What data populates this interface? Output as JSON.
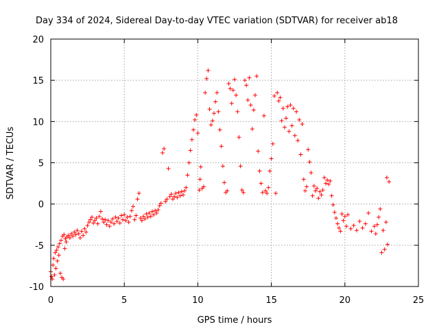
{
  "chart_data": {
    "type": "scatter",
    "title": "Day 334 of 2024, Sidereal Day-to-day VTEC variation (SDTVAR) for receiver ab18",
    "xlabel": "GPS time / hours",
    "ylabel": "SDTVAR / TECUs",
    "xlim": [
      0,
      25
    ],
    "ylim": [
      -10,
      20
    ],
    "xticks": [
      0,
      5,
      10,
      15,
      20,
      25
    ],
    "yticks": [
      -10,
      -5,
      0,
      5,
      10,
      15,
      20
    ],
    "grid": true,
    "marker": "+",
    "series": [
      {
        "name": "SDTVAR",
        "color": "#ff0000",
        "points": [
          [
            0.0,
            -8.2
          ],
          [
            0.05,
            -8.8
          ],
          [
            0.1,
            -9.1
          ],
          [
            0.15,
            -7.4
          ],
          [
            0.2,
            -6.6
          ],
          [
            0.25,
            -8.6
          ],
          [
            0.3,
            -5.9
          ],
          [
            0.35,
            -7.8
          ],
          [
            0.4,
            -5.6
          ],
          [
            0.45,
            -6.9
          ],
          [
            0.5,
            -5.2
          ],
          [
            0.55,
            -6.2
          ],
          [
            0.6,
            -4.8
          ],
          [
            0.65,
            -8.4
          ],
          [
            0.7,
            -4.4
          ],
          [
            0.75,
            -8.9
          ],
          [
            0.8,
            -3.9
          ],
          [
            0.85,
            -9.1
          ],
          [
            0.9,
            -3.7
          ],
          [
            0.95,
            -5.4
          ],
          [
            1.0,
            -4.2
          ],
          [
            1.05,
            -4.6
          ],
          [
            1.1,
            -4.0
          ],
          [
            1.2,
            -3.8
          ],
          [
            1.3,
            -4.1
          ],
          [
            1.4,
            -3.6
          ],
          [
            1.5,
            -3.9
          ],
          [
            1.6,
            -3.4
          ],
          [
            1.7,
            -3.7
          ],
          [
            1.8,
            -3.2
          ],
          [
            1.9,
            -3.6
          ],
          [
            2.0,
            -4.1
          ],
          [
            2.1,
            -3.3
          ],
          [
            2.2,
            -3.8
          ],
          [
            2.3,
            -3.0
          ],
          [
            2.4,
            -3.4
          ],
          [
            2.5,
            -2.6
          ],
          [
            2.6,
            -2.2
          ],
          [
            2.7,
            -1.9
          ],
          [
            2.8,
            -1.6
          ],
          [
            2.9,
            -2.3
          ],
          [
            3.0,
            -2.0
          ],
          [
            3.1,
            -1.7
          ],
          [
            3.2,
            -2.4
          ],
          [
            3.3,
            -1.5
          ],
          [
            3.4,
            -0.9
          ],
          [
            3.5,
            -1.8
          ],
          [
            3.6,
            -2.2
          ],
          [
            3.7,
            -1.9
          ],
          [
            3.8,
            -2.5
          ],
          [
            3.9,
            -2.0
          ],
          [
            4.0,
            -2.7
          ],
          [
            4.1,
            -2.2
          ],
          [
            4.2,
            -1.8
          ],
          [
            4.3,
            -2.4
          ],
          [
            4.4,
            -1.6
          ],
          [
            4.5,
            -2.1
          ],
          [
            4.6,
            -1.7
          ],
          [
            4.7,
            -2.3
          ],
          [
            4.8,
            -1.4
          ],
          [
            4.9,
            -1.9
          ],
          [
            5.0,
            -1.3
          ],
          [
            5.1,
            -2.0
          ],
          [
            5.2,
            -1.6
          ],
          [
            5.3,
            -2.2
          ],
          [
            5.4,
            -1.5
          ],
          [
            5.5,
            -0.8
          ],
          [
            5.6,
            -0.3
          ],
          [
            5.7,
            -1.9
          ],
          [
            5.8,
            -1.4
          ],
          [
            5.9,
            0.6
          ],
          [
            6.0,
            1.3
          ],
          [
            6.1,
            -1.7
          ],
          [
            6.2,
            -2.0
          ],
          [
            6.3,
            -1.5
          ],
          [
            6.4,
            -1.8
          ],
          [
            6.5,
            -1.2
          ],
          [
            6.6,
            -1.6
          ],
          [
            6.7,
            -1.1
          ],
          [
            6.8,
            -1.5
          ],
          [
            6.9,
            -0.9
          ],
          [
            7.0,
            -1.3
          ],
          [
            7.1,
            -0.8
          ],
          [
            7.2,
            -1.1
          ],
          [
            7.3,
            -0.7
          ],
          [
            7.4,
            -0.2
          ],
          [
            7.5,
            0.1
          ],
          [
            7.6,
            6.2
          ],
          [
            7.7,
            6.7
          ],
          [
            7.8,
            0.3
          ],
          [
            7.9,
            0.6
          ],
          [
            8.0,
            4.3
          ],
          [
            8.1,
            0.9
          ],
          [
            8.2,
            1.2
          ],
          [
            8.3,
            0.6
          ],
          [
            8.4,
            0.9
          ],
          [
            8.5,
            1.3
          ],
          [
            8.6,
            0.8
          ],
          [
            8.7,
            1.4
          ],
          [
            8.8,
            1.0
          ],
          [
            8.9,
            1.5
          ],
          [
            9.0,
            1.1
          ],
          [
            9.1,
            1.6
          ],
          [
            9.2,
            2.0
          ],
          [
            9.3,
            3.5
          ],
          [
            9.4,
            5.0
          ],
          [
            9.5,
            6.5
          ],
          [
            9.6,
            7.8
          ],
          [
            9.7,
            9.0
          ],
          [
            9.8,
            10.2
          ],
          [
            9.9,
            10.8
          ],
          [
            10.0,
            8.6
          ],
          [
            10.1,
            1.7
          ],
          [
            10.15,
            3.0
          ],
          [
            10.2,
            4.5
          ],
          [
            10.3,
            1.9
          ],
          [
            10.4,
            2.1
          ],
          [
            10.5,
            13.5
          ],
          [
            10.6,
            15.2
          ],
          [
            10.7,
            16.2
          ],
          [
            10.8,
            11.5
          ],
          [
            10.9,
            9.6
          ],
          [
            11.0,
            10.1
          ],
          [
            11.1,
            11.0
          ],
          [
            11.2,
            12.4
          ],
          [
            11.3,
            13.5
          ],
          [
            11.4,
            11.2
          ],
          [
            11.5,
            9.0
          ],
          [
            11.6,
            7.0
          ],
          [
            11.7,
            4.6
          ],
          [
            11.8,
            2.6
          ],
          [
            11.9,
            1.4
          ],
          [
            12.0,
            1.6
          ],
          [
            12.1,
            14.6
          ],
          [
            12.2,
            14.0
          ],
          [
            12.3,
            12.2
          ],
          [
            12.4,
            13.8
          ],
          [
            12.5,
            15.1
          ],
          [
            12.6,
            13.2
          ],
          [
            12.7,
            11.2
          ],
          [
            12.8,
            8.1
          ],
          [
            12.9,
            4.6
          ],
          [
            13.0,
            1.7
          ],
          [
            13.1,
            1.4
          ],
          [
            13.2,
            15.0
          ],
          [
            13.3,
            14.4
          ],
          [
            13.4,
            12.6
          ],
          [
            13.5,
            15.3
          ],
          [
            13.6,
            12.0
          ],
          [
            13.7,
            9.1
          ],
          [
            13.8,
            11.4
          ],
          [
            13.9,
            13.2
          ],
          [
            14.0,
            15.5
          ],
          [
            14.1,
            6.4
          ],
          [
            14.2,
            4.0
          ],
          [
            14.3,
            2.5
          ],
          [
            14.4,
            1.4
          ],
          [
            14.5,
            10.7
          ],
          [
            14.6,
            1.6
          ],
          [
            14.7,
            1.3
          ],
          [
            14.8,
            2.0
          ],
          [
            14.9,
            4.0
          ],
          [
            15.0,
            5.5
          ],
          [
            15.1,
            7.3
          ],
          [
            15.2,
            13.1
          ],
          [
            15.3,
            1.3
          ],
          [
            15.4,
            13.5
          ],
          [
            15.5,
            12.5
          ],
          [
            15.6,
            12.9
          ],
          [
            15.7,
            10.1
          ],
          [
            15.8,
            11.6
          ],
          [
            15.9,
            9.3
          ],
          [
            16.0,
            10.4
          ],
          [
            16.1,
            11.8
          ],
          [
            16.2,
            8.8
          ],
          [
            16.3,
            12.0
          ],
          [
            16.4,
            9.5
          ],
          [
            16.5,
            11.6
          ],
          [
            16.6,
            8.3
          ],
          [
            16.7,
            11.2
          ],
          [
            16.8,
            7.7
          ],
          [
            16.9,
            10.2
          ],
          [
            17.0,
            6.0
          ],
          [
            17.1,
            9.7
          ],
          [
            17.2,
            3.0
          ],
          [
            17.3,
            1.6
          ],
          [
            17.4,
            2.1
          ],
          [
            17.5,
            6.6
          ],
          [
            17.6,
            5.1
          ],
          [
            17.7,
            3.8
          ],
          [
            17.8,
            1.0
          ],
          [
            17.9,
            2.2
          ],
          [
            18.0,
            1.6
          ],
          [
            18.1,
            1.9
          ],
          [
            18.2,
            0.7
          ],
          [
            18.3,
            1.5
          ],
          [
            18.4,
            1.1
          ],
          [
            18.5,
            1.7
          ],
          [
            18.6,
            3.2
          ],
          [
            18.7,
            2.5
          ],
          [
            18.8,
            2.9
          ],
          [
            18.9,
            2.4
          ],
          [
            19.0,
            2.8
          ],
          [
            19.1,
            1.0
          ],
          [
            19.2,
            -0.1
          ],
          [
            19.3,
            -1.0
          ],
          [
            19.4,
            -1.7
          ],
          [
            19.5,
            -2.4
          ],
          [
            19.6,
            -2.9
          ],
          [
            19.7,
            -3.3
          ],
          [
            19.8,
            -1.2
          ],
          [
            19.9,
            -2.0
          ],
          [
            20.0,
            -1.5
          ],
          [
            20.1,
            -2.7
          ],
          [
            20.2,
            -1.3
          ],
          [
            20.4,
            -3.0
          ],
          [
            20.6,
            -2.6
          ],
          [
            20.8,
            -3.2
          ],
          [
            21.0,
            -2.1
          ],
          [
            21.2,
            -2.9
          ],
          [
            21.4,
            -2.4
          ],
          [
            21.6,
            -1.1
          ],
          [
            21.8,
            -3.3
          ],
          [
            22.0,
            -2.7
          ],
          [
            22.1,
            -3.6
          ],
          [
            22.2,
            -2.5
          ],
          [
            22.3,
            -1.6
          ],
          [
            22.4,
            -0.6
          ],
          [
            22.5,
            -5.9
          ],
          [
            22.6,
            -3.2
          ],
          [
            22.7,
            -5.5
          ],
          [
            22.8,
            -2.2
          ],
          [
            22.85,
            3.2
          ],
          [
            22.9,
            -4.9
          ],
          [
            23.0,
            2.7
          ]
        ]
      }
    ]
  }
}
